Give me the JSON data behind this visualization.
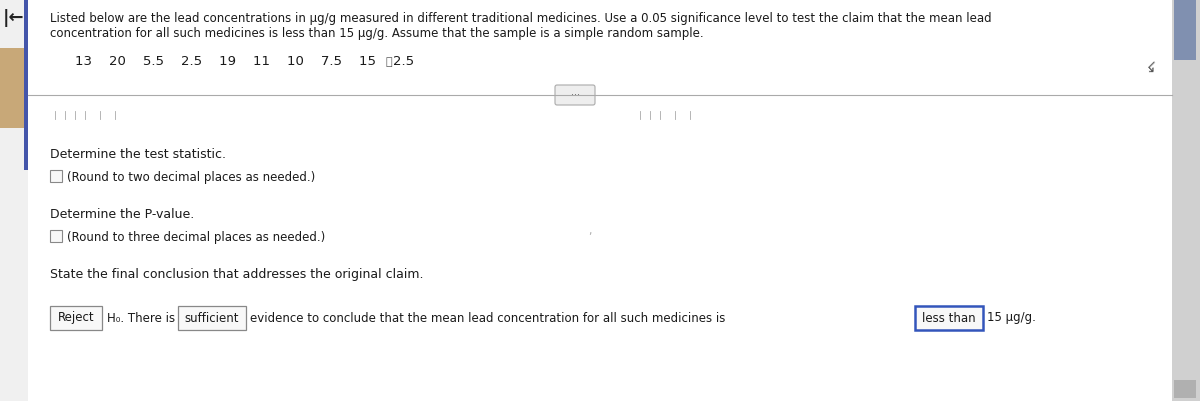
{
  "bg_color": "#f0f0f0",
  "main_bg": "#f4f4f4",
  "white_panel": "#ffffff",
  "text_color": "#1a1a1a",
  "gray_text": "#555555",
  "header_text_line1": "Listed below are the lead concentrations in μg/g measured in different traditional medicines. Use a 0.05 significance level to test the claim that the mean lead",
  "header_text_line2": "concentration for all such medicines is less than 15 μg/g. Assume that the sample is a simple random sample.",
  "data_row": "13    20    5.5    2.5    19    11    10    7.5    15    2.5",
  "section1_title": "Determine the test statistic.",
  "section1_sub": "(Round to two decimal places as needed.)",
  "section2_title": "Determine the P-value.",
  "section2_sub": "(Round to three decimal places as needed.)",
  "section3_title": "State the final conclusion that addresses the original claim.",
  "btn_reject": "Reject",
  "txt_h0": "H₀. There is",
  "btn_sufficient": "sufficient",
  "txt_evidence": "evidence to conclude that the mean lead concentration for all such medicines is",
  "btn_less_than": "less than",
  "txt_15": "15 μg/g.",
  "left_panel_color": "#c8a878",
  "scrollbar_bg": "#d0d0d0",
  "scrollbar_thumb": "#8090b0",
  "divider_color": "#aaaaaa",
  "btn_border": "#888888",
  "less_than_border": "#3355bb",
  "checkbox_border": "#888888",
  "checkbox_fill": "#f8f8f8"
}
